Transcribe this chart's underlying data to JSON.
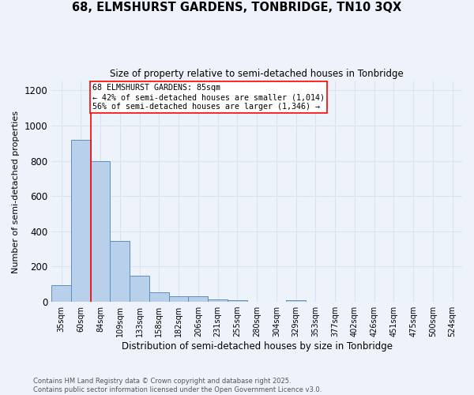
{
  "title_line1": "68, ELMSHURST GARDENS, TONBRIDGE, TN10 3QX",
  "title_line2": "Size of property relative to semi-detached houses in Tonbridge",
  "xlabel": "Distribution of semi-detached houses by size in Tonbridge",
  "ylabel": "Number of semi-detached properties",
  "categories": [
    "35sqm",
    "60sqm",
    "84sqm",
    "109sqm",
    "133sqm",
    "158sqm",
    "182sqm",
    "206sqm",
    "231sqm",
    "255sqm",
    "280sqm",
    "304sqm",
    "329sqm",
    "353sqm",
    "377sqm",
    "402sqm",
    "426sqm",
    "451sqm",
    "475sqm",
    "500sqm",
    "524sqm"
  ],
  "values": [
    95,
    920,
    800,
    345,
    150,
    55,
    30,
    30,
    13,
    8,
    0,
    0,
    8,
    0,
    0,
    0,
    0,
    0,
    0,
    0,
    0
  ],
  "bar_color": "#b8d0ea",
  "bar_edge_color": "#5b8ec4",
  "background_color": "#eef2fa",
  "grid_color": "#d8e4f0",
  "property_line_index": 2,
  "annotation_label": "68 ELMSHURST GARDENS: 85sqm",
  "annotation_line1": "← 42% of semi-detached houses are smaller (1,014)",
  "annotation_line2": "56% of semi-detached houses are larger (1,346) →",
  "ylim": [
    0,
    1250
  ],
  "yticks": [
    0,
    200,
    400,
    600,
    800,
    1000,
    1200
  ],
  "footer_line1": "Contains HM Land Registry data © Crown copyright and database right 2025.",
  "footer_line2": "Contains public sector information licensed under the Open Government Licence v3.0."
}
